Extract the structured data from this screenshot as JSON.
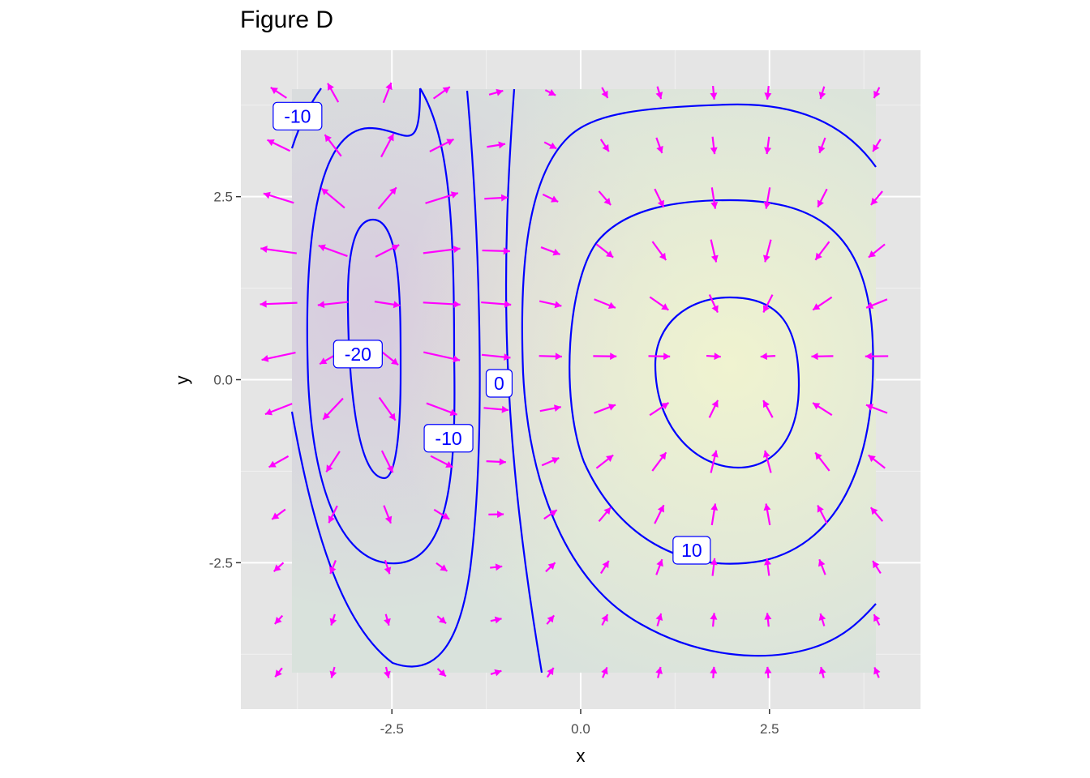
{
  "title": "Figure D",
  "chart_data": {
    "type": "contour",
    "title": "Figure D",
    "xlabel": "x",
    "ylabel": "y",
    "xlim": [
      -4.5,
      4.5
    ],
    "ylim": [
      -4.5,
      4.5
    ],
    "xticks": [
      -2.5,
      0.0,
      2.5
    ],
    "xtick_labels": [
      "-2.5",
      "0.0",
      "2.5"
    ],
    "yticks": [
      -2.5,
      0.0,
      2.5
    ],
    "ytick_labels": [
      "-2.5",
      "0.0",
      "2.5"
    ],
    "grid": true,
    "field_domain": {
      "x": [
        -4,
        4
      ],
      "y": [
        -4,
        4
      ]
    },
    "minimum": {
      "x": -2.85,
      "y": 1.2
    },
    "maximum": {
      "x": 2.1,
      "y": 0.3
    },
    "contour_levels": [
      -20,
      -10,
      0,
      10
    ],
    "contour_labels": [
      {
        "text": "-10",
        "x": -3.75,
        "y": 3.6
      },
      {
        "text": "-20",
        "x": -2.95,
        "y": 0.35
      },
      {
        "text": "-10",
        "x": -1.75,
        "y": -0.8
      },
      {
        "text": "0",
        "x": -1.08,
        "y": -0.05
      },
      {
        "text": "10",
        "x": 1.47,
        "y": -2.33
      }
    ],
    "vector_grid_step": 0.72,
    "colors": {
      "panel_background": "#E5E5E5",
      "grid": "#FFFFFF",
      "contour": "#0000FF",
      "arrow": "#FF00FF",
      "low_fill": "#D6CCE0",
      "high_fill": "#EEF2C8"
    }
  }
}
